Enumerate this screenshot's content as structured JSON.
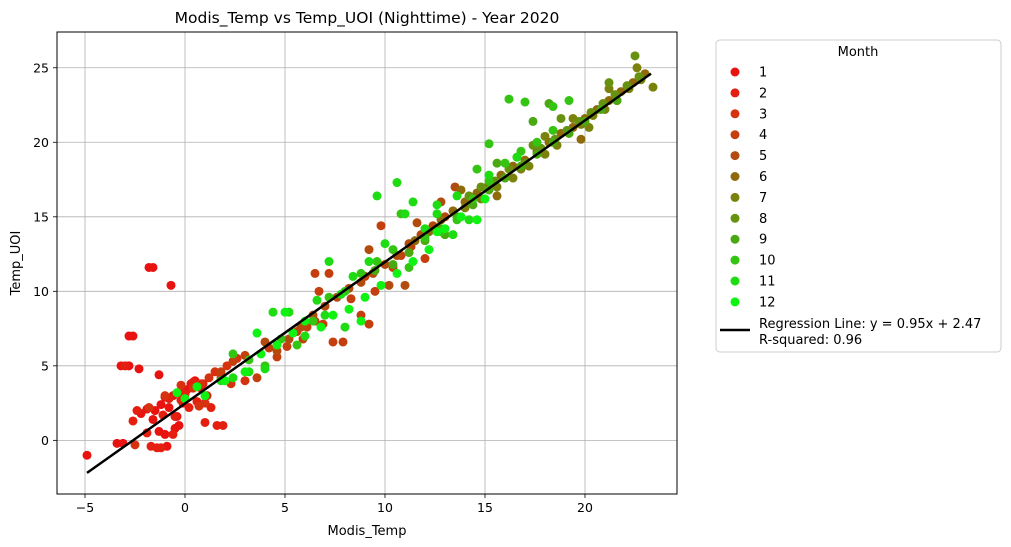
{
  "chart_data": {
    "type": "scatter",
    "title": "Modis_Temp vs Temp_UOI (Nighttime) - Year 2020",
    "xlabel": "Modis_Temp",
    "ylabel": "Temp_UOI",
    "xlim": [
      -6.4,
      24.6
    ],
    "ylim": [
      -3.6,
      27.4
    ],
    "xticks": [
      -5,
      0,
      5,
      10,
      15,
      20
    ],
    "yticks": [
      0,
      5,
      10,
      15,
      20,
      25
    ],
    "grid": true,
    "legend": {
      "title": "Month",
      "placement": "outside-right",
      "regression_label_1": "Regression Line: y = 0.95x + 2.47",
      "regression_label_2": "R-squared: 0.96"
    },
    "regression": {
      "slope": 0.95,
      "intercept": 2.47,
      "r_squared": 0.96,
      "x_range": [
        -4.9,
        23.3
      ],
      "color": "#000000"
    },
    "series": [
      {
        "name": "1",
        "color": "#e8120f",
        "points": [
          [
            -4.9,
            -1.0
          ],
          [
            -3.4,
            -0.2
          ],
          [
            -3.1,
            -0.2
          ],
          [
            -2.2,
            1.8
          ],
          [
            -1.9,
            2.1
          ],
          [
            -1.6,
            1.4
          ],
          [
            -1.5,
            2.0
          ],
          [
            -1.3,
            0.6
          ],
          [
            -1.2,
            2.4
          ],
          [
            -1.0,
            2.9
          ],
          [
            -0.8,
            2.2
          ],
          [
            -0.6,
            3.0
          ],
          [
            -0.4,
            1.6
          ],
          [
            -0.3,
            3.2
          ],
          [
            -0.1,
            2.5
          ],
          [
            0.1,
            3.4
          ],
          [
            0.3,
            3.8
          ],
          [
            0.5,
            4.0
          ],
          [
            0.8,
            3.5
          ],
          [
            -0.7,
            10.4
          ],
          [
            -1.8,
            11.6
          ],
          [
            -1.6,
            11.6
          ],
          [
            -3.2,
            5.0
          ],
          [
            -2.8,
            5.0
          ],
          [
            -2.8,
            7.0
          ],
          [
            -2.6,
            7.0
          ],
          [
            -1.3,
            4.4
          ],
          [
            -1.0,
            0.4
          ],
          [
            -0.5,
            0.8
          ],
          [
            -0.3,
            1.0
          ],
          [
            -0.9,
            -0.4
          ],
          [
            -2.3,
            4.8
          ]
        ]
      },
      {
        "name": "2",
        "color": "#e41f10",
        "points": [
          [
            -3.0,
            5.0
          ],
          [
            -2.4,
            2.0
          ],
          [
            -1.7,
            -0.4
          ],
          [
            -1.4,
            -0.5
          ],
          [
            -1.1,
            1.7
          ],
          [
            -0.8,
            2.8
          ],
          [
            -0.5,
            1.6
          ],
          [
            -0.2,
            2.7
          ],
          [
            0.0,
            3.1
          ],
          [
            0.2,
            2.2
          ],
          [
            0.4,
            3.9
          ],
          [
            0.6,
            2.6
          ],
          [
            0.9,
            3.8
          ],
          [
            1.1,
            3.0
          ],
          [
            1.3,
            2.2
          ],
          [
            1.0,
            1.2
          ],
          [
            1.6,
            1.0
          ],
          [
            1.9,
            1.0
          ],
          [
            -2.6,
            1.3
          ],
          [
            -1.9,
            0.5
          ],
          [
            -0.6,
            0.4
          ],
          [
            -1.2,
            -0.5
          ]
        ]
      },
      {
        "name": "3",
        "color": "#d73210",
        "points": [
          [
            -2.5,
            -0.3
          ],
          [
            -1.8,
            2.2
          ],
          [
            -1.0,
            3.0
          ],
          [
            -0.2,
            3.7
          ],
          [
            0.4,
            3.5
          ],
          [
            0.8,
            3.8
          ],
          [
            1.2,
            4.2
          ],
          [
            1.5,
            4.6
          ],
          [
            1.8,
            4.2
          ],
          [
            2.1,
            5.0
          ],
          [
            2.6,
            5.5
          ],
          [
            3.0,
            4.0
          ],
          [
            2.3,
            3.8
          ],
          [
            1.0,
            2.5
          ],
          [
            0.7,
            2.3
          ]
        ]
      },
      {
        "name": "4",
        "color": "#c43e0e",
        "points": [
          [
            1.8,
            4.6
          ],
          [
            2.4,
            5.3
          ],
          [
            3.0,
            5.7
          ],
          [
            3.6,
            4.2
          ],
          [
            4.2,
            6.2
          ],
          [
            4.6,
            5.6
          ],
          [
            5.1,
            6.3
          ],
          [
            5.6,
            7.3
          ],
          [
            6.1,
            7.6
          ],
          [
            6.5,
            8.0
          ],
          [
            6.9,
            7.8
          ],
          [
            7.4,
            6.6
          ],
          [
            7.9,
            6.6
          ],
          [
            8.3,
            9.5
          ],
          [
            9.0,
            11.0
          ],
          [
            9.5,
            10.0
          ],
          [
            9.8,
            14.4
          ],
          [
            10.4,
            11.6
          ],
          [
            10.8,
            12.4
          ],
          [
            11.3,
            13.0
          ],
          [
            12.0,
            12.2
          ],
          [
            9.2,
            7.8
          ],
          [
            8.8,
            8.4
          ],
          [
            6.5,
            11.2
          ],
          [
            7.2,
            11.2
          ],
          [
            6.7,
            10.0
          ],
          [
            5.9,
            6.8
          ]
        ]
      },
      {
        "name": "5",
        "color": "#b24b0d",
        "points": [
          [
            4.0,
            6.6
          ],
          [
            4.6,
            6.0
          ],
          [
            5.2,
            6.8
          ],
          [
            5.8,
            7.6
          ],
          [
            6.4,
            8.4
          ],
          [
            7.0,
            9.0
          ],
          [
            7.6,
            9.6
          ],
          [
            8.2,
            10.2
          ],
          [
            8.8,
            10.6
          ],
          [
            9.4,
            11.2
          ],
          [
            10.0,
            11.8
          ],
          [
            10.6,
            12.4
          ],
          [
            11.2,
            13.2
          ],
          [
            11.8,
            13.8
          ],
          [
            12.4,
            14.4
          ],
          [
            13.0,
            15.0
          ],
          [
            13.5,
            17.0
          ],
          [
            11.6,
            14.6
          ],
          [
            12.8,
            16.0
          ],
          [
            10.2,
            10.4
          ],
          [
            11.0,
            10.4
          ],
          [
            9.2,
            12.8
          ]
        ]
      },
      {
        "name": "6",
        "color": "#8e6a0b",
        "points": [
          [
            11.5,
            13.4
          ],
          [
            12.2,
            14.0
          ],
          [
            12.8,
            14.8
          ],
          [
            13.4,
            15.4
          ],
          [
            14.0,
            16.0
          ],
          [
            14.6,
            16.6
          ],
          [
            15.2,
            17.2
          ],
          [
            15.8,
            17.8
          ],
          [
            16.4,
            18.4
          ],
          [
            17.0,
            18.8
          ],
          [
            17.6,
            19.4
          ],
          [
            18.2,
            20.0
          ],
          [
            18.8,
            20.6
          ],
          [
            19.4,
            21.0
          ],
          [
            20.0,
            21.6
          ],
          [
            20.6,
            22.2
          ],
          [
            21.2,
            22.8
          ],
          [
            21.8,
            23.4
          ],
          [
            22.4,
            24.0
          ],
          [
            23.0,
            24.6
          ],
          [
            13.8,
            16.8
          ],
          [
            19.8,
            20.2
          ],
          [
            15.6,
            16.4
          ]
        ]
      },
      {
        "name": "7",
        "color": "#7b820b",
        "points": [
          [
            14.0,
            15.6
          ],
          [
            14.8,
            16.2
          ],
          [
            15.6,
            17.0
          ],
          [
            16.4,
            17.6
          ],
          [
            17.2,
            18.4
          ],
          [
            18.0,
            19.2
          ],
          [
            18.6,
            19.8
          ],
          [
            19.2,
            20.6
          ],
          [
            19.8,
            21.2
          ],
          [
            20.4,
            21.8
          ],
          [
            21.0,
            22.2
          ],
          [
            21.6,
            22.8
          ],
          [
            22.2,
            23.6
          ],
          [
            22.8,
            24.2
          ],
          [
            23.4,
            23.7
          ],
          [
            22.6,
            25.0
          ],
          [
            21.2,
            23.6
          ],
          [
            19.4,
            21.6
          ],
          [
            20.2,
            21.0
          ],
          [
            18.0,
            20.4
          ],
          [
            16.8,
            18.2
          ]
        ]
      },
      {
        "name": "8",
        "color": "#66920f",
        "points": [
          [
            15.5,
            17.4
          ],
          [
            16.2,
            18.2
          ],
          [
            17.0,
            18.6
          ],
          [
            17.8,
            19.6
          ],
          [
            18.5,
            20.2
          ],
          [
            19.1,
            20.8
          ],
          [
            19.7,
            21.4
          ],
          [
            20.3,
            22.0
          ],
          [
            20.9,
            22.6
          ],
          [
            21.5,
            23.2
          ],
          [
            22.1,
            23.8
          ],
          [
            22.7,
            24.4
          ],
          [
            22.5,
            25.8
          ],
          [
            21.2,
            24.0
          ],
          [
            18.8,
            21.6
          ],
          [
            17.4,
            19.8
          ],
          [
            16.6,
            19.0
          ],
          [
            14.8,
            17.0
          ],
          [
            14.2,
            16.4
          ]
        ]
      },
      {
        "name": "9",
        "color": "#4aa810",
        "points": [
          [
            9.5,
            11.4
          ],
          [
            10.4,
            11.8
          ],
          [
            11.2,
            12.6
          ],
          [
            12.0,
            13.4
          ],
          [
            12.8,
            14.2
          ],
          [
            13.6,
            15.0
          ],
          [
            14.4,
            15.8
          ],
          [
            15.2,
            16.8
          ],
          [
            16.0,
            17.6
          ],
          [
            16.8,
            18.4
          ],
          [
            17.6,
            19.2
          ],
          [
            18.4,
            20.0
          ],
          [
            19.2,
            20.6
          ],
          [
            20.0,
            21.4
          ],
          [
            20.8,
            22.2
          ],
          [
            21.6,
            22.8
          ],
          [
            17.4,
            21.4
          ],
          [
            18.2,
            22.6
          ],
          [
            15.6,
            18.6
          ],
          [
            13.0,
            13.8
          ]
        ]
      },
      {
        "name": "10",
        "color": "#34c512",
        "points": [
          [
            2.4,
            5.8
          ],
          [
            3.2,
            5.4
          ],
          [
            4.0,
            5.0
          ],
          [
            4.8,
            6.8
          ],
          [
            5.6,
            6.4
          ],
          [
            6.4,
            8.0
          ],
          [
            7.2,
            9.6
          ],
          [
            8.0,
            10.0
          ],
          [
            8.8,
            11.2
          ],
          [
            9.6,
            12.0
          ],
          [
            10.4,
            12.8
          ],
          [
            11.2,
            11.6
          ],
          [
            12.0,
            13.6
          ],
          [
            12.8,
            14.0
          ],
          [
            13.6,
            14.8
          ],
          [
            14.4,
            16.2
          ],
          [
            15.2,
            17.4
          ],
          [
            16.0,
            18.6
          ],
          [
            16.8,
            19.4
          ],
          [
            17.6,
            20.0
          ],
          [
            18.4,
            20.8
          ],
          [
            16.2,
            22.9
          ],
          [
            17.0,
            22.7
          ],
          [
            15.2,
            19.9
          ],
          [
            18.4,
            22.4
          ],
          [
            19.2,
            22.8
          ],
          [
            14.6,
            18.2
          ],
          [
            10.8,
            15.2
          ]
        ]
      },
      {
        "name": "11",
        "color": "#1ddc12",
        "points": [
          [
            1.8,
            4.0
          ],
          [
            2.4,
            4.2
          ],
          [
            3.2,
            4.6
          ],
          [
            4.0,
            4.8
          ],
          [
            4.4,
            8.6
          ],
          [
            5.2,
            8.6
          ],
          [
            6.0,
            7.0
          ],
          [
            6.6,
            9.4
          ],
          [
            7.2,
            12.0
          ],
          [
            7.8,
            9.8
          ],
          [
            8.4,
            11.0
          ],
          [
            9.2,
            12.0
          ],
          [
            10.0,
            13.2
          ],
          [
            10.6,
            17.3
          ],
          [
            11.4,
            16.0
          ],
          [
            12.0,
            14.2
          ],
          [
            12.6,
            15.8
          ],
          [
            13.4,
            13.8
          ],
          [
            14.2,
            14.8
          ],
          [
            15.2,
            17.8
          ],
          [
            16.6,
            19.0
          ],
          [
            9.6,
            16.4
          ],
          [
            11.0,
            15.2
          ],
          [
            12.6,
            15.2
          ],
          [
            13.6,
            16.4
          ],
          [
            7.0,
            8.4
          ],
          [
            8.0,
            7.6
          ]
        ]
      },
      {
        "name": "12",
        "color": "#0ff312",
        "points": [
          [
            -0.4,
            3.2
          ],
          [
            0.0,
            2.8
          ],
          [
            0.6,
            3.6
          ],
          [
            1.0,
            3.0
          ],
          [
            2.0,
            4.0
          ],
          [
            3.0,
            4.6
          ],
          [
            3.8,
            5.8
          ],
          [
            4.6,
            6.4
          ],
          [
            5.4,
            7.2
          ],
          [
            6.0,
            8.0
          ],
          [
            6.8,
            7.6
          ],
          [
            7.4,
            8.4
          ],
          [
            8.2,
            8.8
          ],
          [
            9.0,
            9.6
          ],
          [
            9.8,
            10.4
          ],
          [
            10.6,
            11.2
          ],
          [
            11.4,
            12.0
          ],
          [
            12.2,
            12.8
          ],
          [
            13.0,
            14.2
          ],
          [
            13.8,
            15.0
          ],
          [
            14.6,
            14.8
          ],
          [
            15.0,
            16.2
          ],
          [
            3.6,
            7.2
          ],
          [
            5.0,
            8.6
          ],
          [
            8.8,
            8.0
          ],
          [
            12.6,
            14.0
          ]
        ]
      }
    ]
  }
}
